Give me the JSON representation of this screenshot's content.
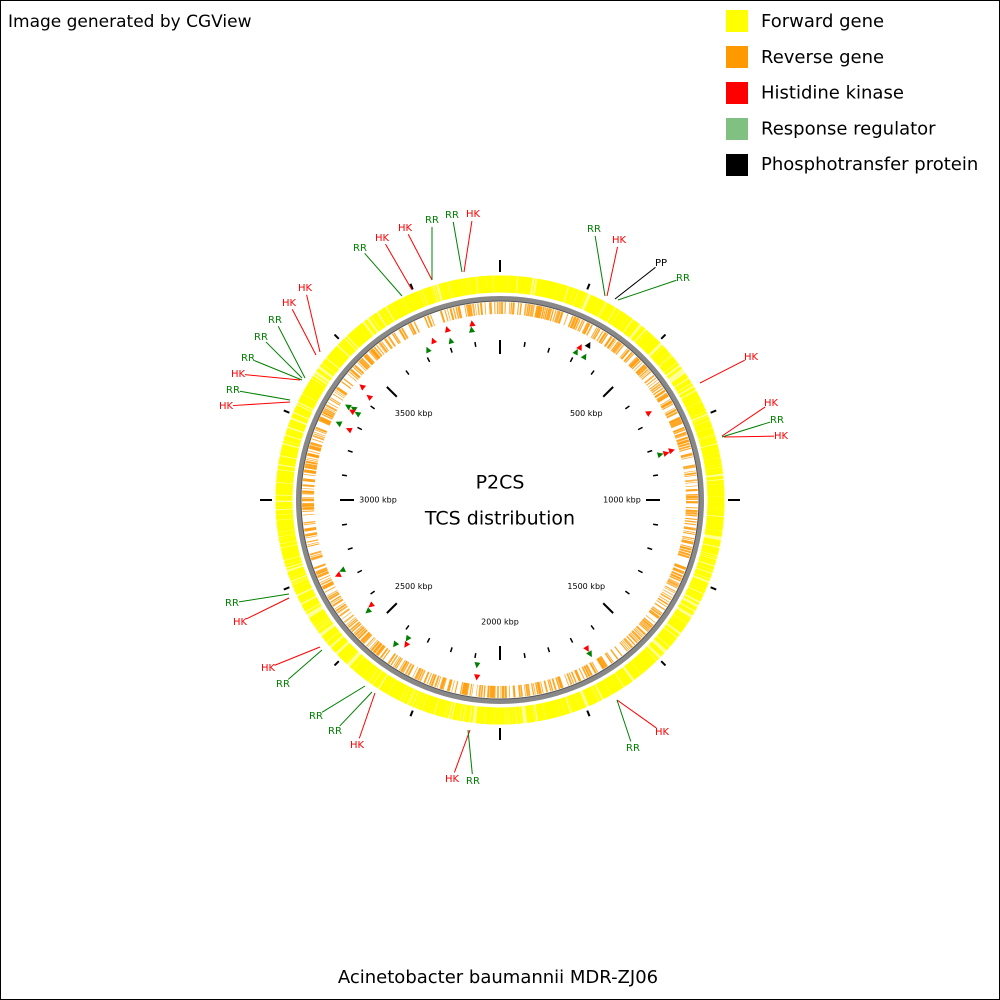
{
  "header": {
    "credit": "Image generated by CGView"
  },
  "legend": [
    {
      "label": "Forward gene",
      "color": "#ffff00"
    },
    {
      "label": "Reverse gene",
      "color": "#ff9900"
    },
    {
      "label": "Histidine kinase",
      "color": "#ff0000"
    },
    {
      "label": "Response regulator",
      "color": "#80c080"
    },
    {
      "label": "Phosphotransfer protein",
      "color": "#000000"
    }
  ],
  "center": {
    "title": "P2CS",
    "subtitle": "TCS distribution"
  },
  "footer": {
    "organism": "Acinetobacter baumannii MDR-ZJ06"
  },
  "kbp_labels": [
    "500 kbp",
    "1000 kbp",
    "1500 kbp",
    "2000 kbp",
    "2500 kbp",
    "3000 kbp",
    "3500 kbp"
  ],
  "feature_labels": [
    {
      "text": "RR",
      "color": "#008000"
    },
    {
      "text": "HK",
      "color": "#ff0000"
    },
    {
      "text": "HK",
      "color": "#ff0000"
    },
    {
      "text": "RR",
      "color": "#008000"
    },
    {
      "text": "RR",
      "color": "#008000"
    },
    {
      "text": "HK",
      "color": "#ff0000"
    },
    {
      "text": "RR",
      "color": "#008000"
    },
    {
      "text": "HK",
      "color": "#ff0000"
    },
    {
      "text": "PP",
      "color": "#000000"
    },
    {
      "text": "RR",
      "color": "#008000"
    },
    {
      "text": "HK",
      "color": "#ff0000"
    },
    {
      "text": "HK",
      "color": "#ff0000"
    },
    {
      "text": "RR",
      "color": "#008000"
    },
    {
      "text": "HK",
      "color": "#ff0000"
    },
    {
      "text": "HK",
      "color": "#ff0000"
    },
    {
      "text": "HK",
      "color": "#ff0000"
    },
    {
      "text": "RR",
      "color": "#008000"
    },
    {
      "text": "RR",
      "color": "#008000"
    },
    {
      "text": "RR",
      "color": "#008000"
    },
    {
      "text": "HK",
      "color": "#ff0000"
    },
    {
      "text": "RR",
      "color": "#008000"
    },
    {
      "text": "HK",
      "color": "#ff0000"
    },
    {
      "text": "RR",
      "color": "#008000"
    },
    {
      "text": "HK",
      "color": "#ff0000"
    },
    {
      "text": "HK",
      "color": "#ff0000"
    },
    {
      "text": "RR",
      "color": "#008000"
    },
    {
      "text": "RR",
      "color": "#008000"
    },
    {
      "text": "RR",
      "color": "#008000"
    },
    {
      "text": "HK",
      "color": "#ff0000"
    },
    {
      "text": "HK",
      "color": "#ff0000"
    },
    {
      "text": "RR",
      "color": "#008000"
    },
    {
      "text": "HK",
      "color": "#ff0000"
    },
    {
      "text": "RR",
      "color": "#008000"
    }
  ]
}
